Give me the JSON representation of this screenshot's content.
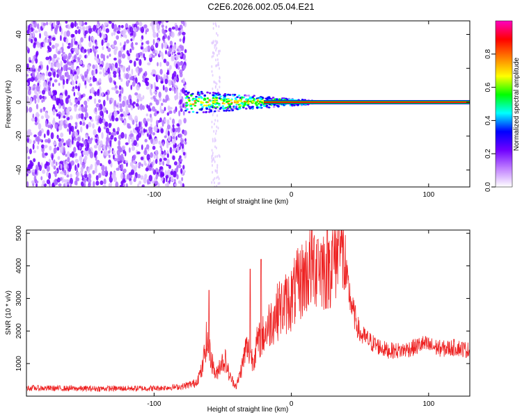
{
  "title": "C2E6.2026.002.05.04.E21",
  "chart_data": [
    {
      "type": "heatmap",
      "name": "spectrogram",
      "xlabel": "Height of straight line (km)",
      "ylabel": "Frequency (Hz)",
      "xlim": [
        -193,
        130
      ],
      "ylim": [
        -50,
        48
      ],
      "x_ticks": [
        -100,
        0,
        100
      ],
      "x_tick_labels": [
        "-100",
        "0",
        "100"
      ],
      "y_ticks": [
        -40,
        -20,
        0,
        20,
        40
      ],
      "y_tick_labels": [
        "-40",
        "-20",
        "0",
        "20",
        "40"
      ],
      "noise_region_km": [
        -193,
        -77
      ],
      "signal_start_km": -77,
      "signal_frequency_hz": 0,
      "colorbar": {
        "label": "Normalized spectral amplitude",
        "range": [
          0,
          1
        ],
        "ticks": [
          0.0,
          0.2,
          0.4,
          0.6,
          0.8
        ],
        "tick_labels": [
          "0.0",
          "0.2",
          "0.4",
          "0.6",
          "0.8"
        ],
        "colors": [
          "#ffffff",
          "#c080ff",
          "#7000ff",
          "#0000ff",
          "#00ffff",
          "#00ff00",
          "#ffff00",
          "#ff8000",
          "#ff0000",
          "#ff00c0"
        ]
      }
    },
    {
      "type": "line",
      "name": "snr",
      "xlabel": "Height of straight line (km)",
      "ylabel": "SNR (10 * v/v)",
      "xlim": [
        -193,
        130
      ],
      "ylim": [
        0,
        5100
      ],
      "x_ticks": [
        -100,
        0,
        100
      ],
      "x_tick_labels": [
        "-100",
        "0",
        "100"
      ],
      "y_ticks": [
        1000,
        2000,
        3000,
        4000,
        5000
      ],
      "y_tick_labels": [
        "1000",
        "2000",
        "3000",
        "4000",
        "5000"
      ],
      "color": "#ee2222",
      "series": [
        {
          "name": "SNR",
          "x": [
            -193,
            -150,
            -100,
            -80,
            -70,
            -65,
            -62,
            -58,
            -55,
            -52,
            -48,
            -45,
            -40,
            -36,
            -33,
            -30,
            -28,
            -25,
            -20,
            -15,
            -10,
            -5,
            0,
            5,
            10,
            15,
            20,
            25,
            30,
            33,
            35,
            38,
            40,
            42,
            45,
            50,
            60,
            70,
            80,
            90,
            95,
            100,
            110,
            120,
            130
          ],
          "y": [
            250,
            230,
            240,
            290,
            400,
            800,
            1700,
            1100,
            600,
            1000,
            1100,
            600,
            300,
            900,
            1500,
            1300,
            1100,
            1600,
            1900,
            2300,
            2600,
            2800,
            3000,
            3400,
            3700,
            4000,
            4100,
            3900,
            4200,
            4400,
            4700,
            4300,
            3600,
            3200,
            2600,
            1900,
            1600,
            1400,
            1400,
            1500,
            1600,
            1550,
            1450,
            1500,
            1400
          ]
        }
      ],
      "spikes": [
        {
          "x": -60,
          "y": 3250
        },
        {
          "x": -30,
          "y": 3900
        },
        {
          "x": -22,
          "y": 4200
        },
        {
          "x": -9,
          "y": 3300
        },
        {
          "x": 19,
          "y": 4800
        },
        {
          "x": 27,
          "y": 4700
        },
        {
          "x": 35,
          "y": 5100
        }
      ]
    }
  ]
}
